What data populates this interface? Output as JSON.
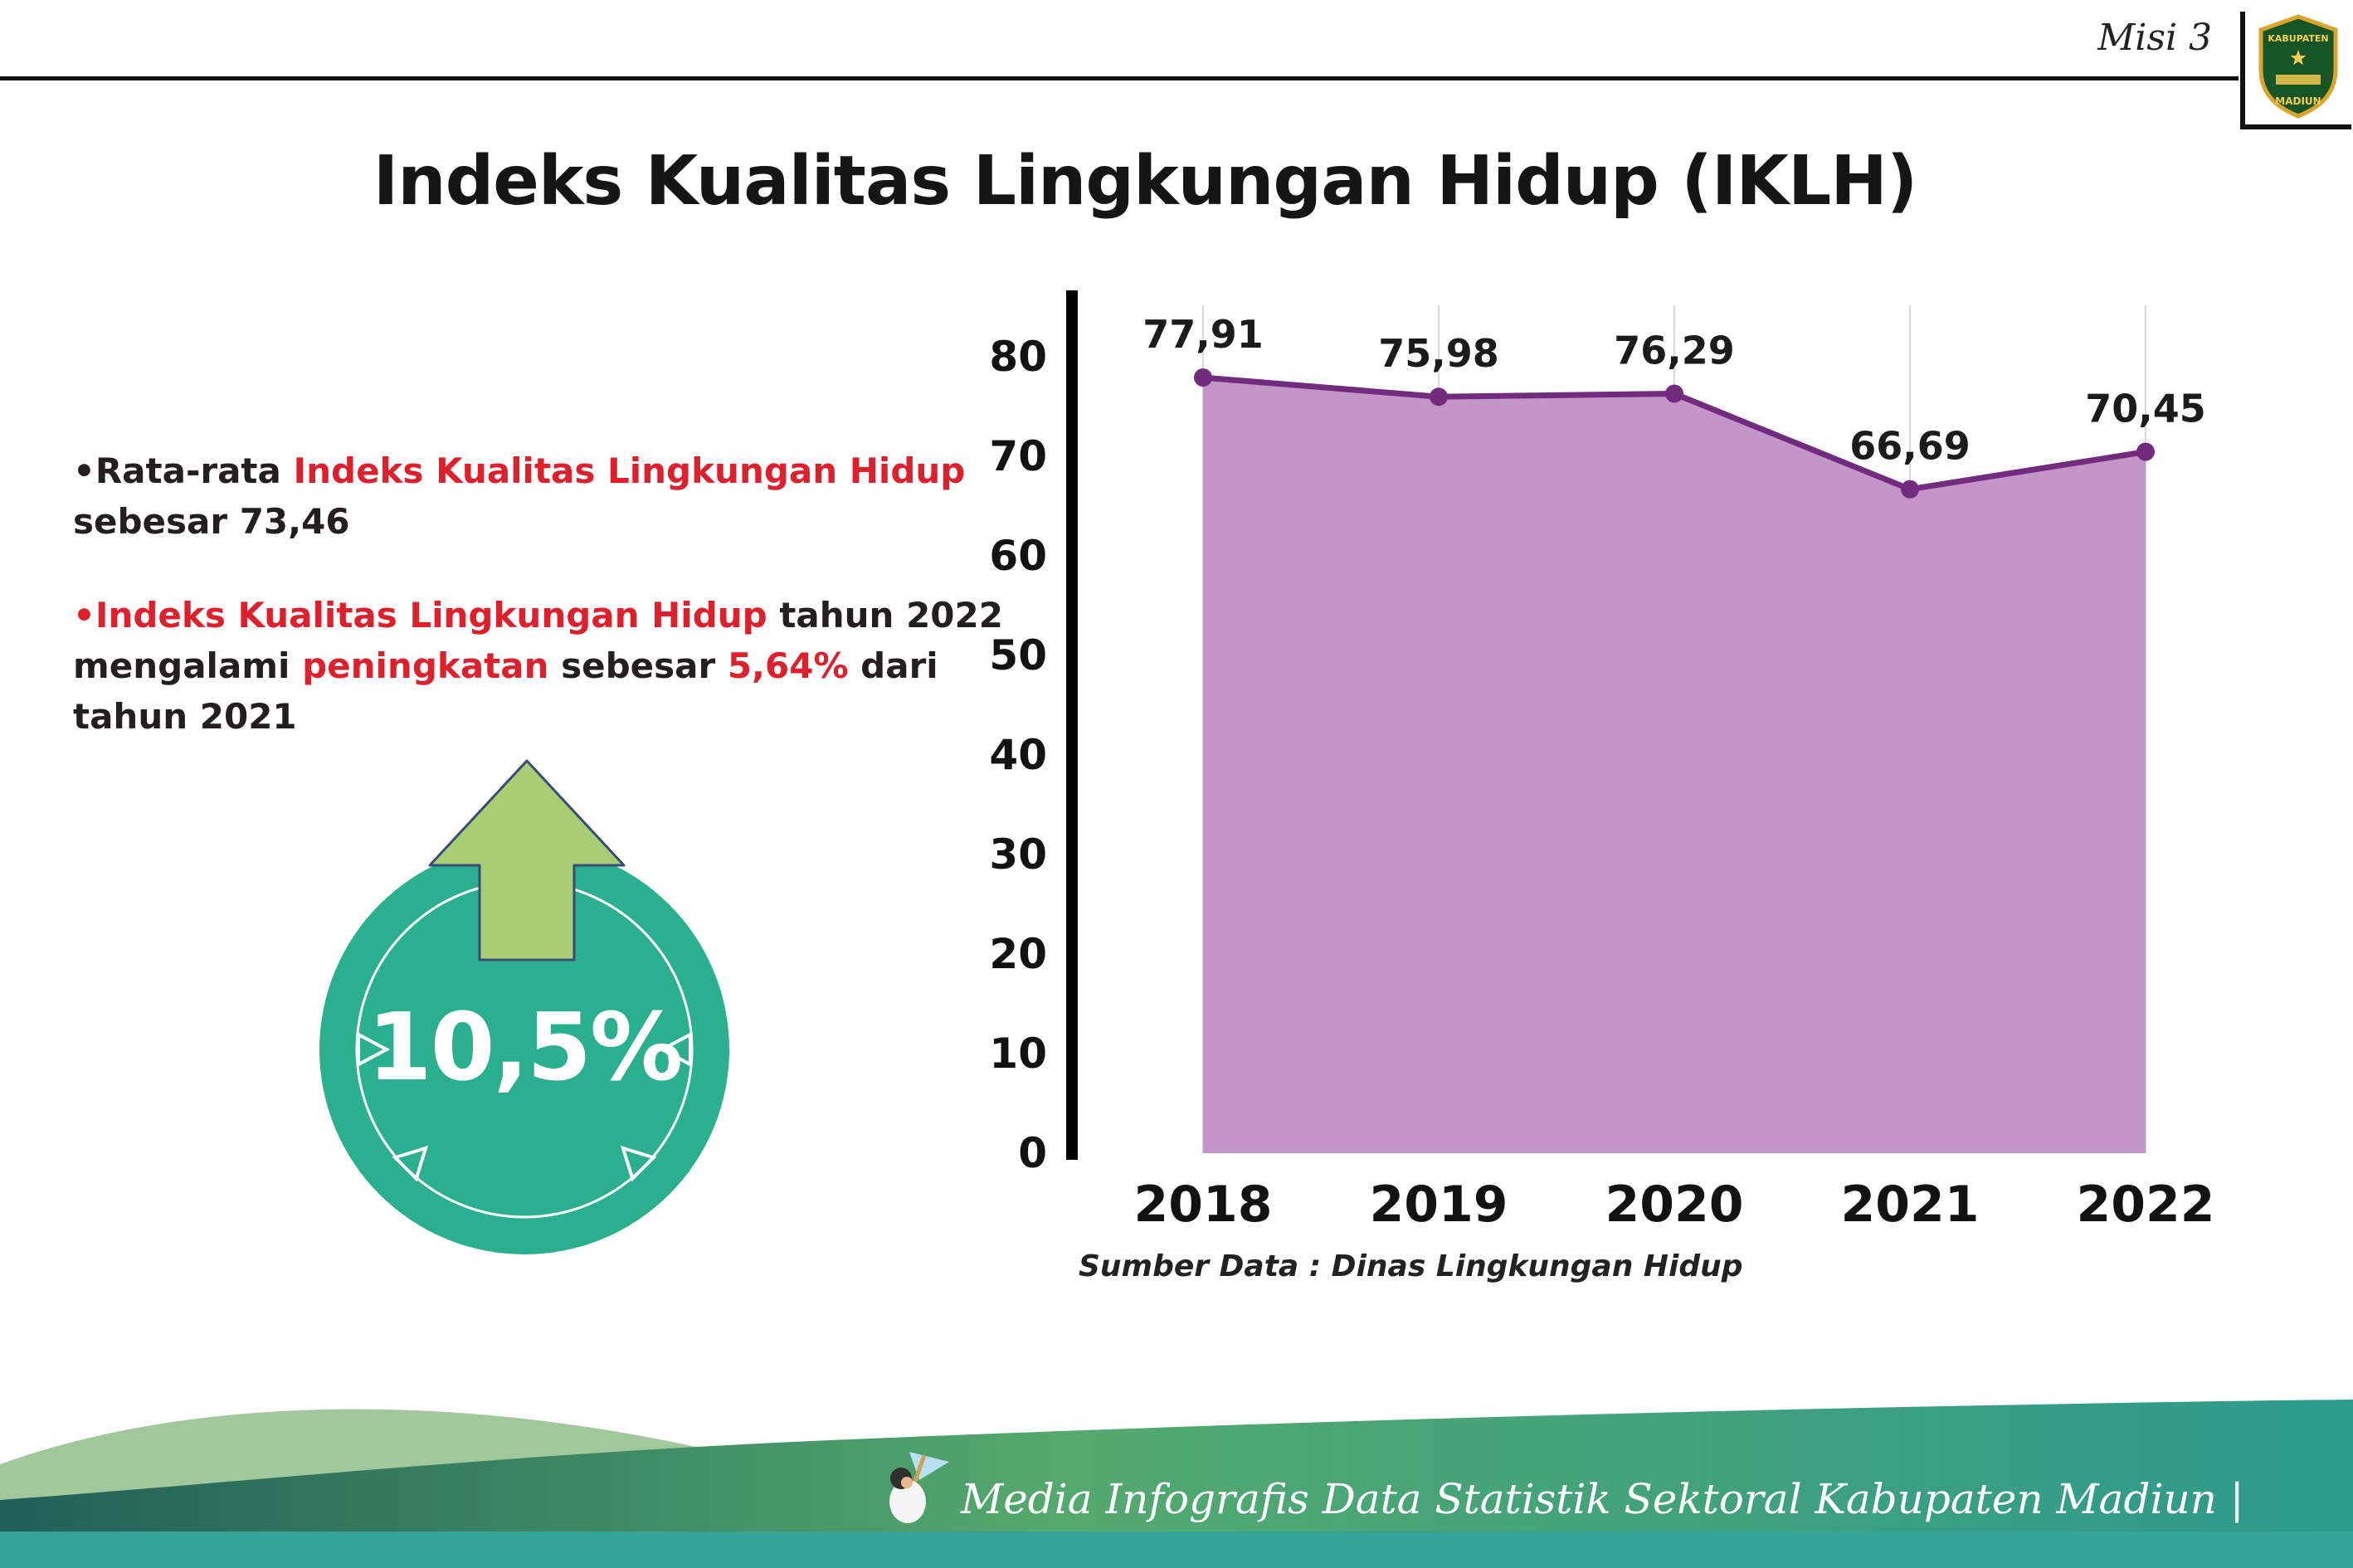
{
  "header": {
    "misi_label": "Misi 3",
    "title": "Indeks Kualitas Lingkungan Hidup (IKLH)",
    "logo": {
      "top_text": "KABUPATEN",
      "bottom_text": "MADIUN"
    }
  },
  "bullets": {
    "first": {
      "prefix": "•Rata-rata ",
      "highlight": "Indeks Kualitas Lingkungan Hidup",
      "suffix": " sebesar 73,46"
    },
    "second": {
      "highlight1": "•Indeks Kualitas Lingkungan Hidup",
      "mid1": " tahun 2022 mengalami ",
      "highlight2": "peningkatan",
      "mid2": " sebesar ",
      "highlight3": "5,64%",
      "suffix": " dari tahun 2021"
    }
  },
  "badge": {
    "value": "10,5%"
  },
  "chart_data": {
    "type": "area",
    "title": "Indeks Kualitas Lingkungan Hidup (IKLH)",
    "categories": [
      "2018",
      "2019",
      "2020",
      "2021",
      "2022"
    ],
    "values": [
      77.91,
      75.98,
      76.29,
      66.69,
      70.45
    ],
    "value_labels": [
      "77,91",
      "75,98",
      "76,29",
      "66,69",
      "70,45"
    ],
    "xlabel": "",
    "ylabel": "",
    "ylim": [
      0,
      80
    ],
    "yticks": [
      0,
      10,
      20,
      30,
      40,
      50,
      60,
      70,
      80
    ],
    "grid": "vertical-light",
    "legend": "none",
    "fill_color": "#c495c9",
    "line_color": "#722c7d",
    "source": "Sumber Data : Dinas Lingkungan Hidup"
  },
  "footer": {
    "credit": "Media Infografis Data Statistik Sektoral Kabupaten Madiun |"
  },
  "colors": {
    "accent_red": "#e01f2d",
    "badge_teal": "#2bb08f",
    "arrow_green": "#a8cd72",
    "chart_fill": "#c495c9",
    "chart_line": "#722c7d",
    "footer_teal_strip": "#36a399",
    "footer_dark_teal": "#215f57",
    "footer_green": "#54a96e"
  }
}
